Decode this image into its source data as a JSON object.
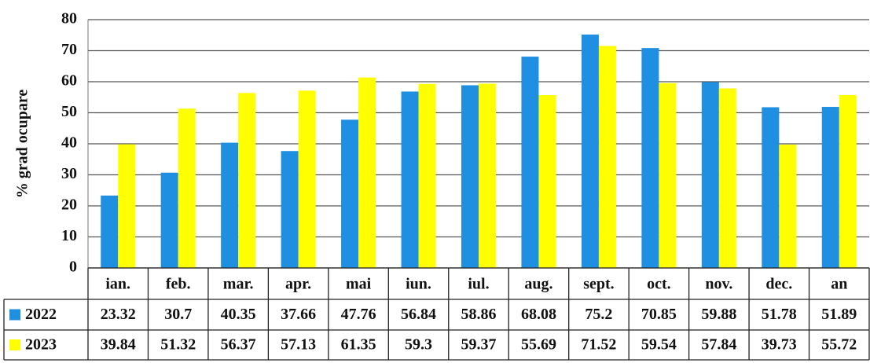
{
  "chart_data": {
    "type": "bar",
    "y_label": "% grad ocupare",
    "categories": [
      "ian.",
      "feb.",
      "mar.",
      "apr.",
      "mai",
      "iun.",
      "iul.",
      "aug.",
      "sept.",
      "oct.",
      "nov.",
      "dec.",
      "an"
    ],
    "series": [
      {
        "name": "2022",
        "color": "#1e8fe1",
        "values": [
          23.32,
          30.7,
          40.35,
          37.66,
          47.76,
          56.84,
          58.86,
          68.08,
          75.2,
          70.85,
          59.88,
          51.78,
          51.89
        ]
      },
      {
        "name": "2023",
        "color": "#ffff00",
        "values": [
          39.84,
          51.32,
          56.37,
          57.13,
          61.35,
          59.3,
          59.37,
          55.69,
          71.52,
          59.54,
          57.84,
          39.73,
          55.72
        ]
      }
    ],
    "ylim": [
      0,
      80
    ],
    "yticks": [
      0,
      10,
      20,
      30,
      40,
      50,
      60,
      70,
      80
    ],
    "grid": true
  }
}
